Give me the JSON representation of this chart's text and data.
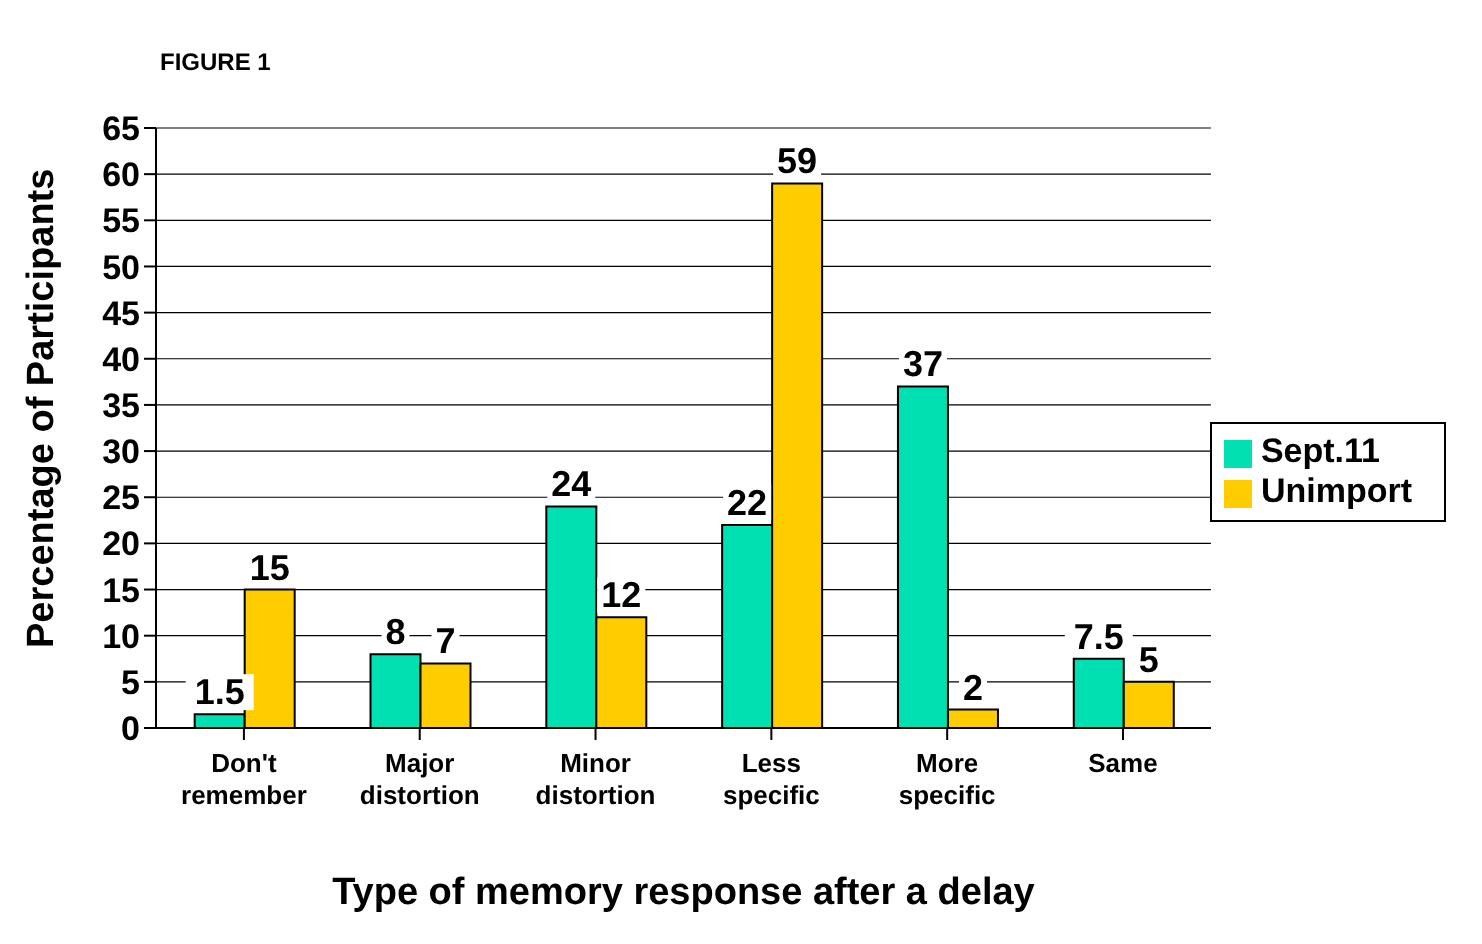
{
  "chart_data": {
    "type": "bar",
    "title": "FIGURE 1",
    "xlabel": "Type of memory response after a delay",
    "ylabel": "Percentage of Participants",
    "categories": [
      "Don't remember",
      "Major distortion",
      "Minor distortion",
      "Less specific",
      "More specific",
      "Same"
    ],
    "series": [
      {
        "name": "Sept.11",
        "color": "#00e0b0",
        "values": [
          1.5,
          8,
          24,
          22,
          37,
          7.5
        ]
      },
      {
        "name": "Unimport",
        "color": "#ffcc00",
        "values": [
          15,
          7,
          12,
          59,
          2,
          5
        ]
      }
    ],
    "ylim": [
      0,
      65
    ],
    "yticks": [
      0,
      5,
      10,
      15,
      20,
      25,
      30,
      35,
      40,
      45,
      50,
      55,
      60,
      65
    ],
    "grid": "y",
    "legend": "right",
    "data_labels": true
  }
}
